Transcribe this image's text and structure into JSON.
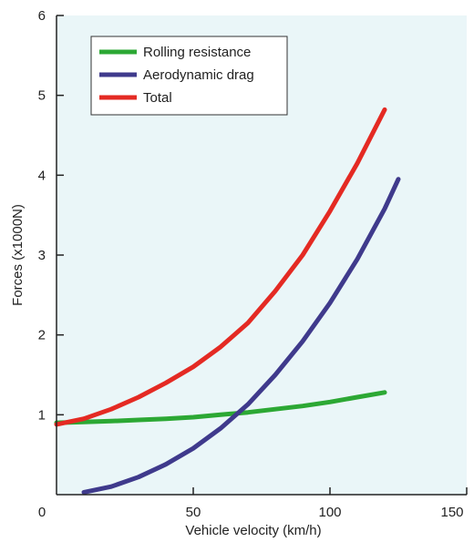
{
  "chart_data": {
    "type": "line",
    "title": "",
    "xlabel": "Vehicle velocity (km/h)",
    "ylabel": "Forces (x1000N)",
    "xlim": [
      0,
      150
    ],
    "ylim": [
      0,
      6
    ],
    "xticks": [
      0,
      50,
      100,
      150
    ],
    "yticks": [
      1,
      2,
      3,
      4,
      5,
      6
    ],
    "grid": false,
    "legend_position": "top-left",
    "plot_background": "#eaf6f8",
    "series": [
      {
        "name": "Rolling resistance",
        "color": "#2ca834",
        "x": [
          0,
          10,
          20,
          30,
          40,
          50,
          60,
          70,
          80,
          90,
          100,
          110,
          120
        ],
        "y": [
          0.9,
          0.91,
          0.92,
          0.935,
          0.95,
          0.97,
          1.0,
          1.03,
          1.07,
          1.11,
          1.16,
          1.22,
          1.28
        ]
      },
      {
        "name": "Aerodynamic drag",
        "color": "#3f3a8c",
        "x": [
          10,
          20,
          30,
          40,
          50,
          60,
          70,
          80,
          90,
          100,
          110,
          120,
          125
        ],
        "y": [
          0.03,
          0.1,
          0.22,
          0.38,
          0.58,
          0.83,
          1.13,
          1.5,
          1.92,
          2.4,
          2.95,
          3.58,
          3.95
        ]
      },
      {
        "name": "Total",
        "color": "#e42a23",
        "x": [
          0,
          10,
          20,
          30,
          40,
          50,
          60,
          70,
          80,
          90,
          100,
          110,
          120
        ],
        "y": [
          0.88,
          0.95,
          1.07,
          1.22,
          1.4,
          1.6,
          1.85,
          2.15,
          2.55,
          3.0,
          3.55,
          4.15,
          4.82
        ]
      }
    ]
  }
}
